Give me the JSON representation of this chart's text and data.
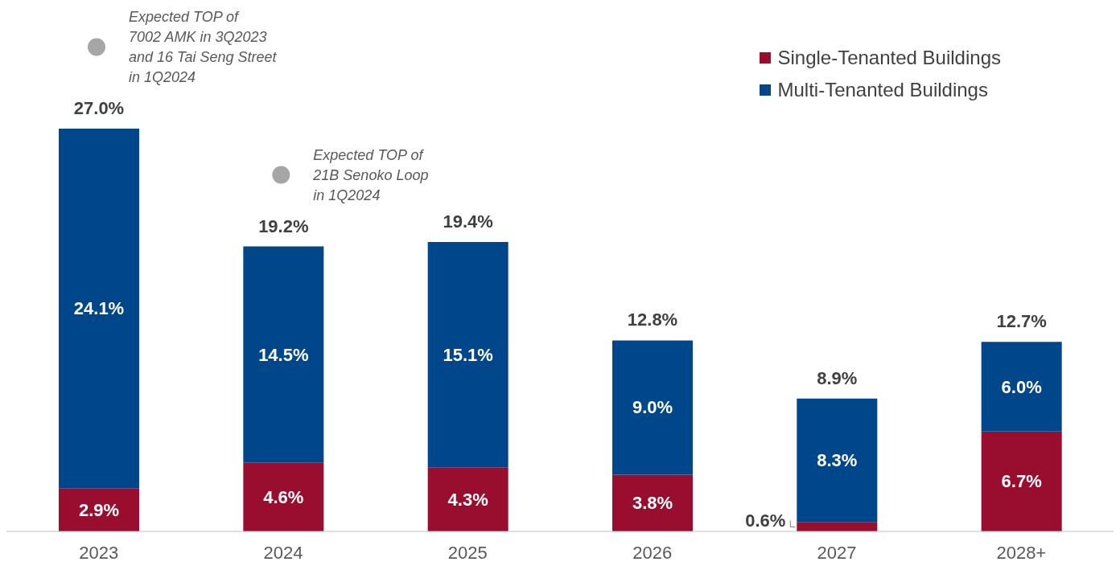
{
  "chart_data": {
    "type": "bar",
    "stacked": true,
    "legend": "top right",
    "categories": [
      "2023",
      "2024",
      "2025",
      "2026",
      "2027",
      "2028+"
    ],
    "series": [
      {
        "name": "Single-Tenanted Buildings",
        "color": "#990d2e",
        "values": [
          2.9,
          4.6,
          4.3,
          3.8,
          0.6,
          6.7
        ],
        "value_labels": [
          "2.9%",
          "4.6%",
          "4.3%",
          "3.8%",
          "0.6%",
          "6.7%"
        ]
      },
      {
        "name": "Multi-Tenanted Buildings",
        "color": "#00468b",
        "values": [
          24.1,
          14.5,
          15.1,
          9.0,
          8.3,
          6.0
        ],
        "value_labels": [
          "24.1%",
          "14.5%",
          "15.1%",
          "9.0%",
          "8.3%",
          "6.0%"
        ]
      }
    ],
    "totals": [
      "27.0%",
      "19.2%",
      "19.4%",
      "12.8%",
      "8.9%",
      "12.7%"
    ],
    "annotations": [
      "Expected TOP of\n7002 AMK in 3Q2023\nand 16 Tai Seng Street\nin 1Q2024",
      "Expected TOP of\n21B Senoko Loop\nin 1Q2024"
    ]
  }
}
